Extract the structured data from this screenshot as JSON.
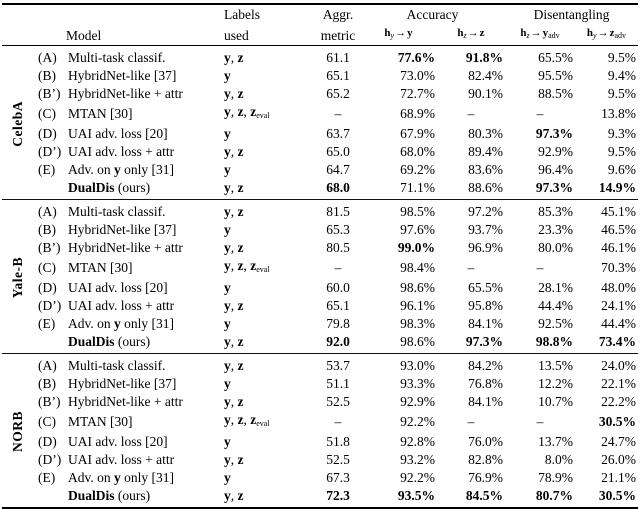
{
  "header": {
    "model": "Model",
    "labels_line1": "Labels",
    "labels_line2": "used",
    "aggr_line1": "Aggr.",
    "aggr_line2": "metric",
    "accuracy": "Accuracy",
    "disentangling": "Disentangling",
    "metric_cols": [
      [
        {
          "t": "h",
          "b": true
        },
        {
          "t": "y",
          "sub": true,
          "i": true
        },
        {
          "t": "→"
        },
        {
          "t": "y",
          "b": true
        }
      ],
      [
        {
          "t": "h",
          "b": true
        },
        {
          "t": "z",
          "sub": true,
          "i": true
        },
        {
          "t": "→"
        },
        {
          "t": "z",
          "b": true
        }
      ],
      [
        {
          "t": "h",
          "b": true
        },
        {
          "t": "z",
          "sub": true,
          "i": true
        },
        {
          "t": "→"
        },
        {
          "t": "y",
          "b": true
        },
        {
          "t": "adv",
          "sub": true
        }
      ],
      [
        {
          "t": "h",
          "b": true
        },
        {
          "t": "y",
          "sub": true,
          "i": true
        },
        {
          "t": "→"
        },
        {
          "t": "z",
          "b": true
        },
        {
          "t": "adv",
          "sub": true
        }
      ]
    ]
  },
  "groups": [
    {
      "name": "CelebA",
      "rows": [
        {
          "letter": "(A)",
          "model": "Multi-task classif.",
          "labels": "y, z",
          "values": [
            "61.1",
            {
              "t": "77.6%",
              "b": true
            },
            {
              "t": "91.8%",
              "b": true
            },
            "65.5%",
            "9.5%"
          ]
        },
        {
          "letter": "(B)",
          "model": "HybridNet-like [37]",
          "labels": "y",
          "values": [
            "65.1",
            "73.0%",
            "82.4%",
            "95.5%",
            "9.4%"
          ]
        },
        {
          "letter": "(B’)",
          "model": "HybridNet-like + attr",
          "labels": "y, z",
          "values": [
            "65.2",
            "72.7%",
            "90.1%",
            "88.5%",
            "9.5%"
          ]
        },
        {
          "letter": "(C)",
          "model": "MTAN [30]",
          "labels": "y, z, z_eval",
          "values": [
            "–",
            "68.9%",
            "–",
            "–",
            "13.8%"
          ]
        },
        {
          "letter": "(D)",
          "model": "UAI adv. loss [20]",
          "labels": "y",
          "values": [
            "63.7",
            "67.9%",
            "80.3%",
            {
              "t": "97.3%",
              "b": true
            },
            "9.3%"
          ]
        },
        {
          "letter": "(D’)",
          "model": "UAI adv. loss + attr",
          "labels": "y, z",
          "values": [
            "65.0",
            "68.0%",
            "89.4%",
            "92.9%",
            "9.5%"
          ]
        },
        {
          "letter": "(E)",
          "model": [
            {
              "t": "Adv. on "
            },
            {
              "t": "y",
              "b": true
            },
            {
              "t": " only [31]"
            }
          ],
          "labels": "y",
          "values": [
            "64.7",
            "69.2%",
            "83.6%",
            "96.4%",
            "9.6%"
          ]
        },
        {
          "letter": "",
          "model": [
            {
              "t": "DualDis",
              "b": true
            },
            {
              "t": " (ours)"
            }
          ],
          "labels": "y, z",
          "values": [
            {
              "t": "68.0",
              "b": true
            },
            "71.1%",
            "88.6%",
            {
              "t": "97.3%",
              "b": true
            },
            {
              "t": "14.9%",
              "b": true
            }
          ]
        }
      ]
    },
    {
      "name": "Yale-B",
      "rows": [
        {
          "letter": "(A)",
          "model": "Multi-task classif.",
          "labels": "y, z",
          "values": [
            "81.5",
            "98.5%",
            "97.2%",
            "85.3%",
            "45.1%"
          ]
        },
        {
          "letter": "(B)",
          "model": "HybridNet-like [37]",
          "labels": "y",
          "values": [
            "65.3",
            "97.6%",
            "93.7%",
            "23.3%",
            "46.5%"
          ]
        },
        {
          "letter": "(B’)",
          "model": "HybridNet-like + attr",
          "labels": "y, z",
          "values": [
            "80.5",
            {
              "t": "99.0%",
              "b": true
            },
            "96.9%",
            "80.0%",
            "46.1%"
          ]
        },
        {
          "letter": "(C)",
          "model": "MTAN [30]",
          "labels": "y, z, z_eval",
          "values": [
            "–",
            "98.4%",
            "–",
            "–",
            "70.3%"
          ]
        },
        {
          "letter": "(D)",
          "model": "UAI adv. loss [20]",
          "labels": "y",
          "values": [
            "60.0",
            "98.6%",
            "65.5%",
            "28.1%",
            "48.0%"
          ]
        },
        {
          "letter": "(D’)",
          "model": "UAI adv. loss + attr",
          "labels": "y, z",
          "values": [
            "65.1",
            "96.1%",
            "95.8%",
            "44.4%",
            "24.1%"
          ]
        },
        {
          "letter": "(E)",
          "model": [
            {
              "t": "Adv. on "
            },
            {
              "t": "y",
              "b": true
            },
            {
              "t": " only [31]"
            }
          ],
          "labels": "y",
          "values": [
            "79.8",
            "98.3%",
            "84.1%",
            "92.5%",
            "44.4%"
          ]
        },
        {
          "letter": "",
          "model": [
            {
              "t": "DualDis",
              "b": true
            },
            {
              "t": " (ours)"
            }
          ],
          "labels": "y, z",
          "values": [
            {
              "t": "92.0",
              "b": true
            },
            "98.6%",
            {
              "t": "97.3%",
              "b": true
            },
            {
              "t": "98.8%",
              "b": true
            },
            {
              "t": "73.4%",
              "b": true
            }
          ]
        }
      ]
    },
    {
      "name": "NORB",
      "rows": [
        {
          "letter": "(A)",
          "model": "Multi-task classif.",
          "labels": "y, z",
          "values": [
            "53.7",
            "93.0%",
            "84.2%",
            "13.5%",
            "24.0%"
          ]
        },
        {
          "letter": "(B)",
          "model": "HybridNet-like [37]",
          "labels": "y",
          "values": [
            "51.1",
            "93.3%",
            "76.8%",
            "12.2%",
            "22.1%"
          ]
        },
        {
          "letter": "(B’)",
          "model": "HybridNet-like + attr",
          "labels": "y, z",
          "values": [
            "52.5",
            "92.9%",
            "84.1%",
            "10.7%",
            "22.2%"
          ]
        },
        {
          "letter": "(C)",
          "model": "MTAN [30]",
          "labels": "y, z, z_eval",
          "values": [
            "–",
            "92.2%",
            "–",
            "–",
            {
              "t": "30.5%",
              "b": true
            }
          ]
        },
        {
          "letter": "(D)",
          "model": "UAI adv. loss [20]",
          "labels": "y",
          "values": [
            "51.8",
            "92.8%",
            "76.0%",
            "13.7%",
            "24.7%"
          ]
        },
        {
          "letter": "(D’)",
          "model": "UAI adv. loss + attr",
          "labels": "y, z",
          "values": [
            "52.5",
            "93.2%",
            "82.8%",
            "8.0%",
            "26.0%"
          ]
        },
        {
          "letter": "(E)",
          "model": [
            {
              "t": "Adv. on "
            },
            {
              "t": "y",
              "b": true
            },
            {
              "t": " only [31]"
            }
          ],
          "labels": "y",
          "values": [
            "67.3",
            "92.2%",
            "76.9%",
            "78.9%",
            "21.1%"
          ]
        },
        {
          "letter": "",
          "model": [
            {
              "t": "DualDis",
              "b": true
            },
            {
              "t": " (ours)"
            }
          ],
          "labels": "y, z",
          "values": [
            {
              "t": "72.3",
              "b": true
            },
            {
              "t": "93.5%",
              "b": true
            },
            {
              "t": "84.5%",
              "b": true
            },
            {
              "t": "80.7%",
              "b": true
            },
            {
              "t": "30.5%",
              "b": true
            }
          ]
        }
      ]
    }
  ]
}
